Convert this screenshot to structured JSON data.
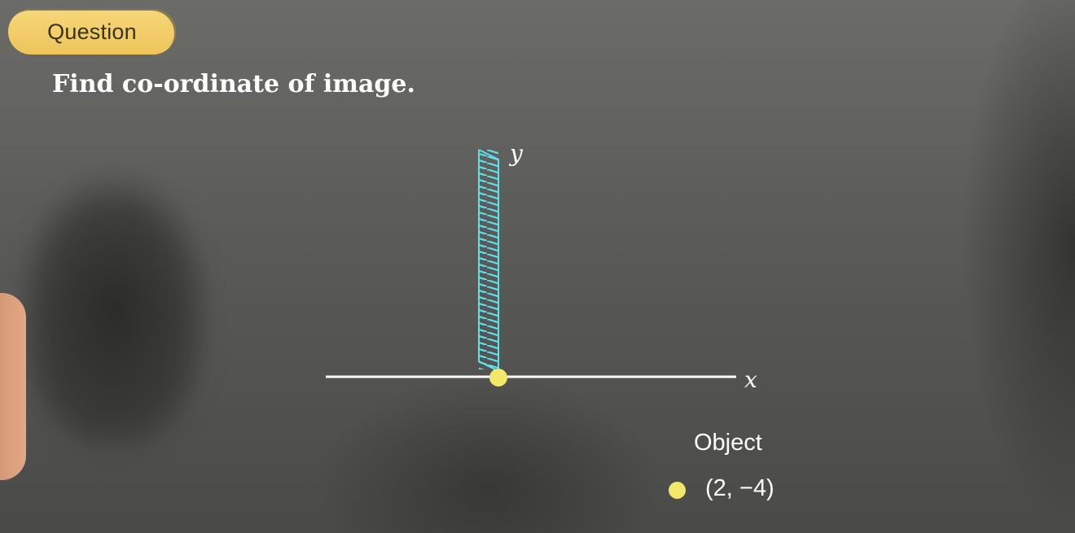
{
  "badge": {
    "label": "Question"
  },
  "question": {
    "text": "Find co-ordinate of image."
  },
  "diagram": {
    "y_axis_label": "y",
    "x_axis_label": "x",
    "mirror_color": "#5fe0ec",
    "axis_color": "#ffffff",
    "point_color": "#f3e86a"
  },
  "legend": {
    "title": "Object",
    "items": [
      {
        "label": "(2, −4)",
        "color": "#f3e86a"
      }
    ]
  }
}
